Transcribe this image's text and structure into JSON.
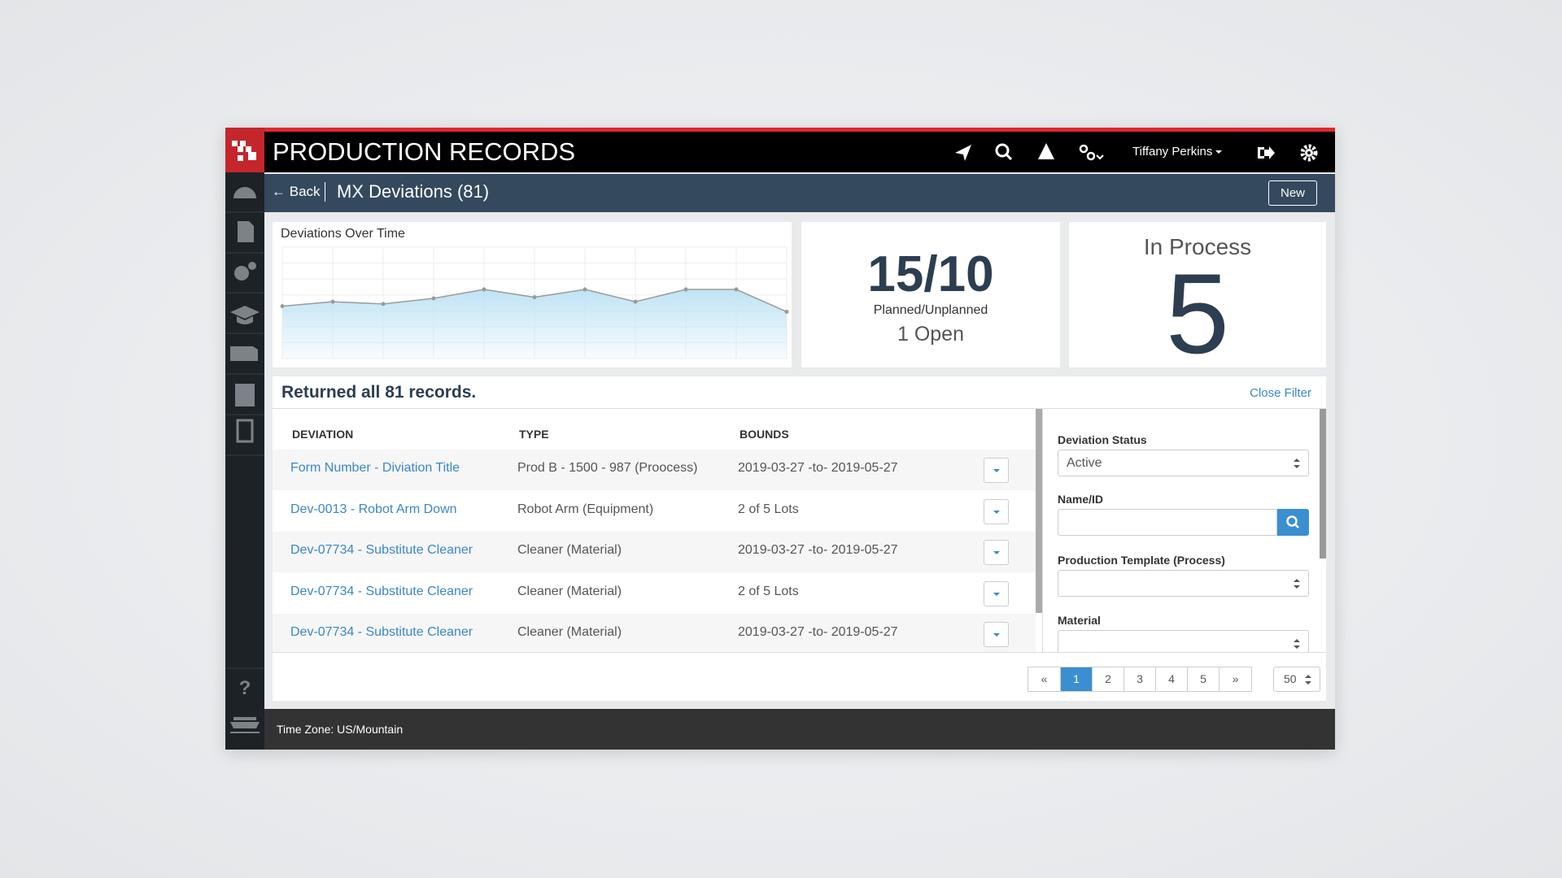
{
  "header": {
    "title": "PRODUCTION RECORDS",
    "user": "Tiffany Perkins"
  },
  "subheader": {
    "back": "Back",
    "title": "MX Deviations (81)",
    "new_button": "New"
  },
  "chart_data": {
    "type": "line",
    "title": "Deviations Over Time",
    "values": [
      4.7,
      5.1,
      4.9,
      5.4,
      6.2,
      5.5,
      6.2,
      5.1,
      6.2,
      6.2,
      4.2
    ],
    "ylim": [
      0,
      10
    ],
    "color": "#9a9a9a",
    "fill": "#bfe3f4",
    "grid": true
  },
  "stats": {
    "ratio": "15/10",
    "ratio_label": "Planned/Unplanned",
    "open": "1 Open",
    "status_label": "In Process",
    "status_value": "5"
  },
  "table": {
    "summary": "Returned all 81 records.",
    "close_filter": "Close Filter",
    "columns": [
      "DEVIATION",
      "TYPE",
      "BOUNDS"
    ],
    "rows": [
      [
        "Form Number - Diviation Title",
        "Prod B - 1500 - 987 (Proocess)",
        "2019-03-27 -to- 2019-05-27"
      ],
      [
        "Dev-0013 - Robot Arm Down",
        "Robot Arm (Equipment)",
        "2 of 5 Lots"
      ],
      [
        "Dev-07734 - Substitute Cleaner",
        "Cleaner (Material)",
        "2019-03-27 -to- 2019-05-27"
      ],
      [
        "Dev-07734 - Substitute Cleaner",
        "Cleaner (Material)",
        "2 of 5 Lots"
      ],
      [
        "Dev-07734 - Substitute Cleaner",
        "Cleaner (Material)",
        "2019-03-27 -to- 2019-05-27"
      ]
    ]
  },
  "filter": {
    "fields": [
      {
        "label": "Deviation Status",
        "value": "Active"
      },
      {
        "label": "Name/ID"
      },
      {
        "label": "Production Template (Process)"
      },
      {
        "label": "Material"
      }
    ]
  },
  "pagination": {
    "pages": [
      "«",
      "1",
      "2",
      "3",
      "4",
      "5",
      "»"
    ],
    "page_size": "50"
  },
  "footer": {
    "timezone": "Time Zone: US/Mountain"
  }
}
